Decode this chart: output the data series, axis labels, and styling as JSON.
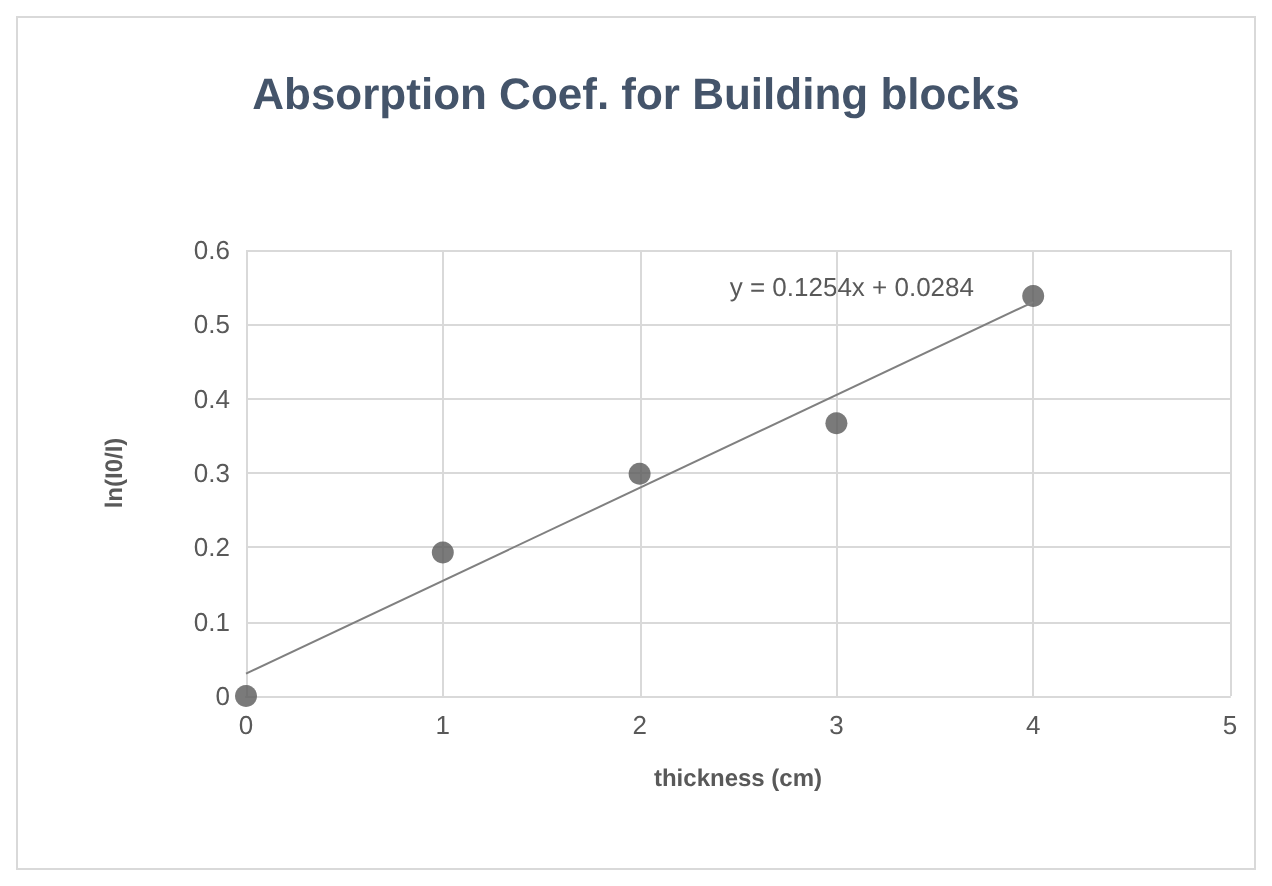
{
  "chart_data": {
    "type": "scatter",
    "title": "Absorption Coef. for Building blocks",
    "xlabel": "thickness (cm)",
    "ylabel": "ln(I0/I)",
    "x": [
      0,
      1,
      2,
      3,
      4
    ],
    "series": [
      {
        "color": "#595959",
        "values": [
          0,
          0.193,
          0.299,
          0.367,
          0.538
        ],
        "marker": "circle"
      },
      {
        "type": "line",
        "color": "#808080",
        "x": [
          0,
          4
        ],
        "values": [
          0.03,
          0.53
        ],
        "marker": "none",
        "line_style": "solid"
      }
    ],
    "annotations": [
      "y = 0.1254x + 0.0284"
    ],
    "xlim": [
      0,
      5
    ],
    "xticks": [
      0,
      1,
      2,
      3,
      4,
      5
    ],
    "ylim": [
      0,
      0.6
    ],
    "yticks": [
      0,
      0.1,
      0.2,
      0.3,
      0.4,
      0.5,
      0.6
    ],
    "grid": true
  }
}
